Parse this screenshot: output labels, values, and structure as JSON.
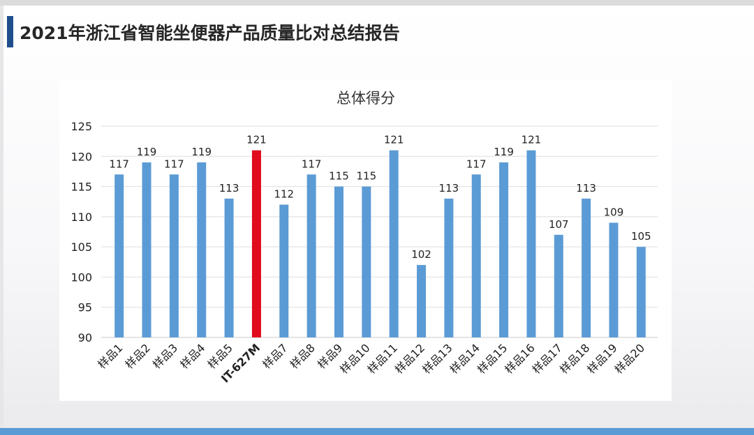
{
  "header": {
    "title": "2021年浙江省智能坐便器产品质量比对总结报告"
  },
  "colors": {
    "accent": "#1f4e8c",
    "bar": "#5b9bd5",
    "highlight": "#e00b1c",
    "bottom_bar": "#5b9bd5"
  },
  "chart_data": {
    "type": "bar",
    "title": "总体得分",
    "xlabel": "",
    "ylabel": "",
    "ylim": [
      90,
      125
    ],
    "yticks": [
      90,
      95,
      100,
      105,
      110,
      115,
      120,
      125
    ],
    "grid": true,
    "categories": [
      "样品1",
      "样品2",
      "样品3",
      "样品4",
      "样品5",
      "IT-627M",
      "样品7",
      "样品8",
      "样品9",
      "样品10",
      "样品11",
      "样品12",
      "样品13",
      "样品14",
      "样品15",
      "样品16",
      "样品17",
      "样品18",
      "样品19",
      "样品20"
    ],
    "values": [
      117,
      119,
      117,
      119,
      113,
      121,
      112,
      117,
      115,
      115,
      121,
      102,
      113,
      117,
      119,
      121,
      107,
      113,
      109,
      105
    ],
    "highlight_category": "IT-627M",
    "data_labels": true
  }
}
